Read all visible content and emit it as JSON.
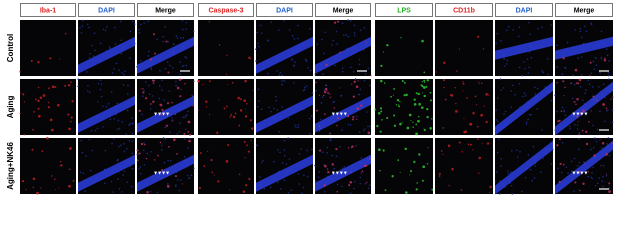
{
  "column_headers": [
    "Iba-1",
    "DAPI",
    "Merge",
    "Caspase-3",
    "DAPI",
    "Merge",
    "LPS",
    "CD11b",
    "DAPI",
    "Merge"
  ],
  "row_labels": [
    "Control",
    "Aging",
    "Aging+NK46"
  ]
}
